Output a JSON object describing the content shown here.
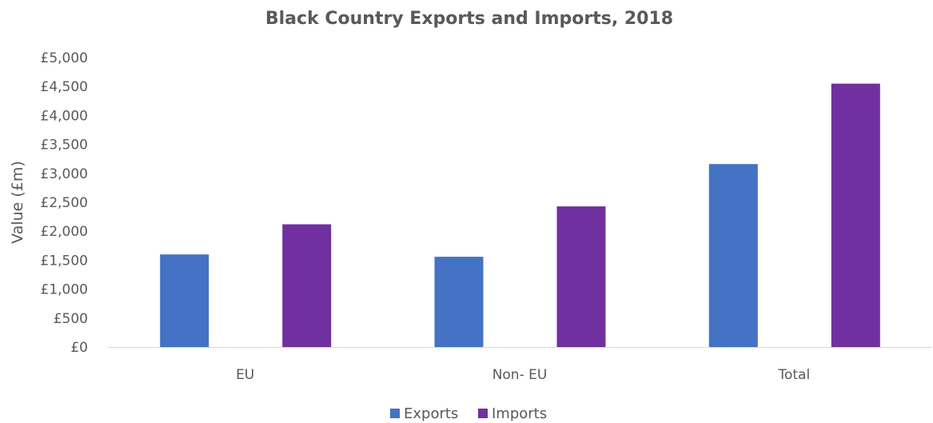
{
  "chart_data": {
    "type": "bar",
    "title": "Black Country Exports and Imports, 2018",
    "xlabel": "",
    "ylabel": "Value (£m)",
    "categories": [
      "EU",
      "Non- EU",
      "Total"
    ],
    "series": [
      {
        "name": "Exports",
        "color": "#4472C4",
        "values": [
          1600,
          1560,
          3160
        ]
      },
      {
        "name": "Imports",
        "color": "#7030A0",
        "values": [
          2120,
          2430,
          4550
        ]
      }
    ],
    "ylim": [
      0,
      5000
    ],
    "yticks": [
      0,
      500,
      1000,
      1500,
      2000,
      2500,
      3000,
      3500,
      4000,
      4500,
      5000
    ],
    "ytick_labels": [
      "£0",
      "£500",
      "£1,000",
      "£1,500",
      "£2,000",
      "£2,500",
      "£3,000",
      "£3,500",
      "£4,000",
      "£4,500",
      "£5,000"
    ],
    "grid": false,
    "legend": "bottom"
  }
}
